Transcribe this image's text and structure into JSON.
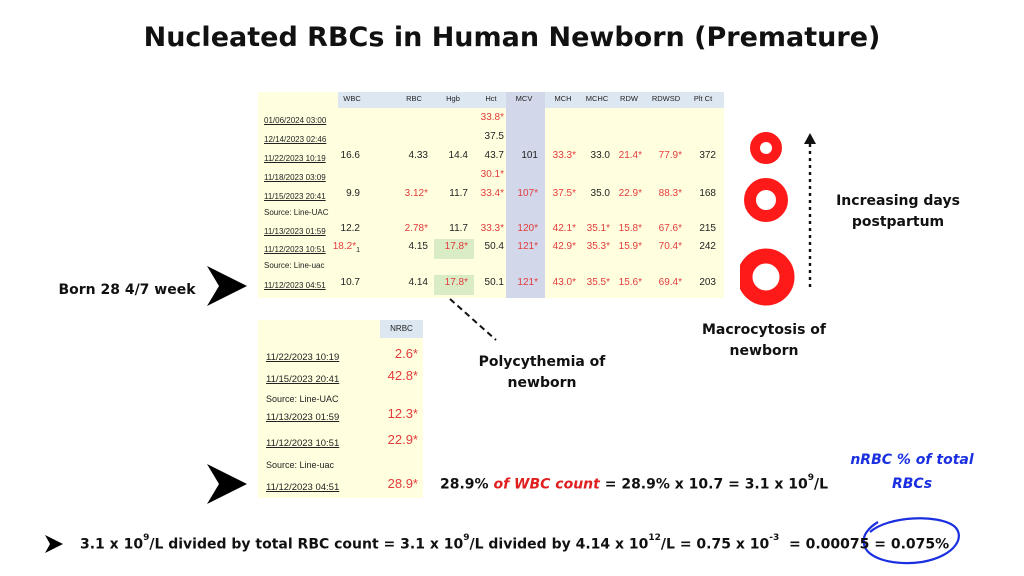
{
  "title": "Nucleated RBCs in Human Newborn (Premature)",
  "lab_table": {
    "headers": [
      "WBC",
      "RBC",
      "Hgb",
      "Hct",
      "MCV",
      "MCH",
      "MCHC",
      "RDW",
      "RDWSD",
      "Plt Ct"
    ],
    "rows": [
      {
        "date": "01/06/2024 03:00",
        "Hct": "33.8*"
      },
      {
        "date": "12/14/2023 02:46",
        "Hct": "37.5"
      },
      {
        "date": "11/22/2023 10:19",
        "WBC": "16.6",
        "RBC": "4.33",
        "Hgb": "14.4",
        "Hct": "43.7",
        "MCV": "101",
        "MCH": "33.3*",
        "MCHC": "33.0",
        "RDW": "21.4*",
        "RDWSD": "77.9*",
        "Plt": "372"
      },
      {
        "date": "11/18/2023 03:09",
        "Hct": "30.1*"
      },
      {
        "date": "11/15/2023 20:41",
        "WBC": "9.9",
        "RBC": "3.12*",
        "Hgb": "11.7",
        "Hct": "33.4*",
        "MCV": "107*",
        "MCH": "37.5*",
        "MCHC": "35.0",
        "RDW": "22.9*",
        "RDWSD": "88.3*",
        "Plt": "168"
      },
      {
        "source": "Source: Line-UAC"
      },
      {
        "date": "11/13/2023 01:59",
        "WBC": "12.2",
        "RBC": "2.78*",
        "Hgb": "11.7",
        "Hct": "33.3*",
        "MCV": "120*",
        "MCH": "42.1*",
        "MCHC": "35.1*",
        "RDW": "15.8*",
        "RDWSD": "67.6*",
        "Plt": "215"
      },
      {
        "date": "11/12/2023 10:51",
        "WBC": "18.2*1",
        "RBC": "4.15",
        "Hgb": "17.8*",
        "Hct": "50.4",
        "MCV": "121*",
        "MCH": "42.9*",
        "MCHC": "35.3*",
        "RDW": "15.9*",
        "RDWSD": "70.4*",
        "Plt": "242"
      },
      {
        "source": "Source: Line-uac"
      },
      {
        "date": "11/12/2023 04:51",
        "WBC": "10.7",
        "RBC": "4.14",
        "Hgb": "17.8*",
        "Hct": "50.1",
        "MCV": "121*",
        "MCH": "43.0*",
        "MCHC": "35.5*",
        "RDW": "15.6*",
        "RDWSD": "69.4*",
        "Plt": "203"
      }
    ]
  },
  "nrbc_table": {
    "header": "NRBC",
    "rows": [
      {
        "date": "11/22/2023 10:19",
        "value": "2.6*"
      },
      {
        "date": "11/15/2023 20:41",
        "value": "42.8*"
      },
      {
        "source": "Source: Line-UAC"
      },
      {
        "date": "11/13/2023 01:59",
        "value": "12.3*"
      },
      {
        "date": "11/12/2023 10:51",
        "value": "22.9*"
      },
      {
        "source": "Source: Line-uac"
      },
      {
        "date": "11/12/2023 04:51",
        "value": "28.9*"
      }
    ]
  },
  "labels": {
    "born": "Born 28 4/7 week",
    "polycythemia": "Polycythemia of newborn",
    "macrocytosis": "Macrocytosis of newborn",
    "increasing_days": "Increasing days postpartum",
    "nrbc_percent": "nRBC  % of total RBCs"
  },
  "equation1": {
    "part1": "28.9%",
    "red": "of WBC count",
    "part2": "= 28.9% x 10.7 = 3.1 x 10",
    "exp": "9",
    "tail": "/L"
  },
  "equation2": {
    "a": "3.1 x 10",
    "a_exp": "9",
    "b": "/L  divided by total RBC count = 3.1 x 10",
    "b_exp": "9",
    "c": "/L divided by 4.14 x 10",
    "c_exp": "12",
    "d": "/L = 0.75 x 10",
    "d_exp": "-3",
    "e": "= 0.00075 = 0.075%"
  },
  "colors": {
    "flag": "#e23b3b",
    "accent_red": "#ff1a1a",
    "annotation_blue": "#1a2fe0",
    "table_bg": "#ffffe0"
  }
}
